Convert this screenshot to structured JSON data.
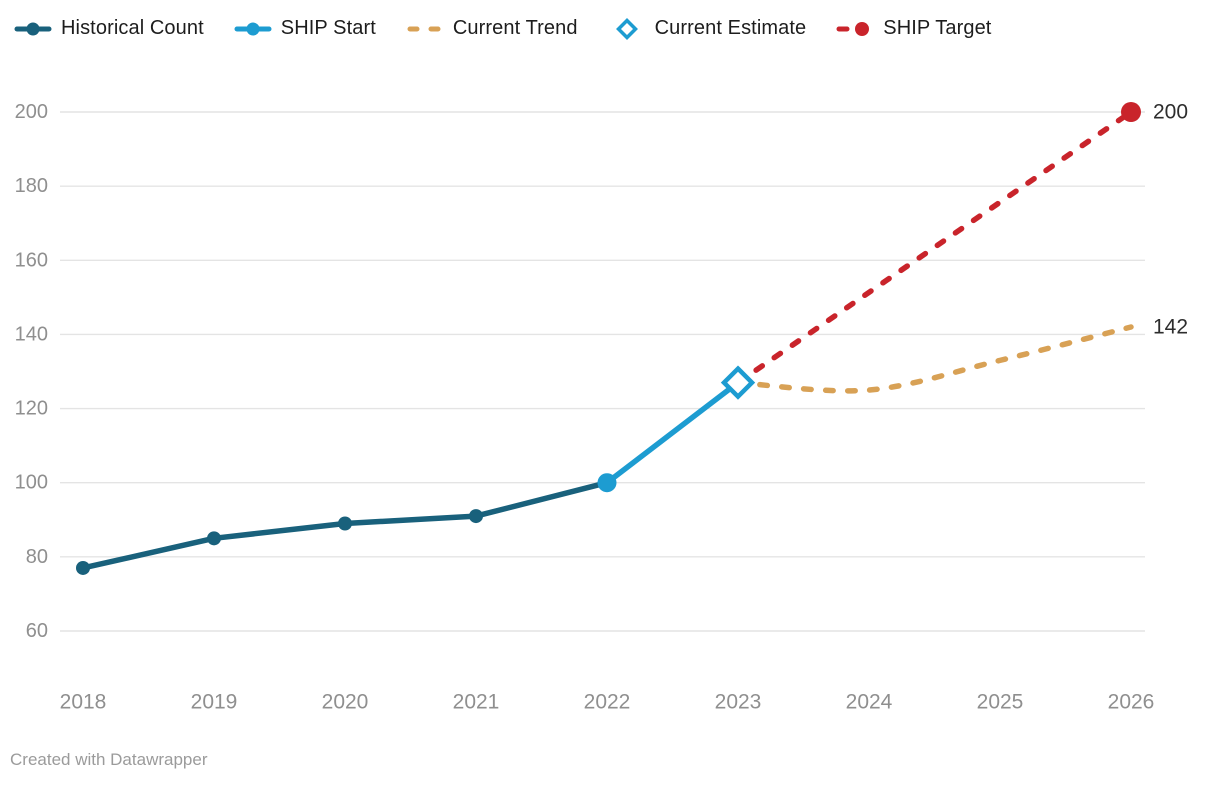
{
  "footer": "Created with Datawrapper",
  "colors": {
    "background": "#ffffff",
    "grid": "#e4e4e4",
    "axis_text": "#8f8f8f",
    "value_label_text": "#2d2d2d",
    "legend_text": "#1d1d1d",
    "footer_text": "#9b9b9b",
    "historical": "#19617c",
    "ship_start": "#1d9cd1",
    "current_trend": "#d8a155",
    "current_estimate": "#1d9cd1",
    "ship_target": "#c9242b"
  },
  "chart_data": {
    "type": "line",
    "title": "",
    "xlabel": "",
    "ylabel": "",
    "grid": "horizontal",
    "legend_position": "top",
    "x_ticks": [
      2018,
      2019,
      2020,
      2021,
      2022,
      2023,
      2024,
      2025,
      2026
    ],
    "x_tick_labels": [
      "2018",
      "2019",
      "2020",
      "2021",
      "2022",
      "2023",
      "2024",
      "2025",
      "2026"
    ],
    "y_ticks": [
      60,
      80,
      100,
      120,
      140,
      160,
      180,
      200
    ],
    "y_tick_labels": [
      "60",
      "80",
      "100",
      "120",
      "140",
      "160",
      "180",
      "200"
    ],
    "xlim": [
      2018,
      2026
    ],
    "ylim": [
      60,
      200
    ],
    "series": [
      {
        "name": "Historical Count",
        "type": "line",
        "style": "solid",
        "marker": "circle",
        "marker_size": 7,
        "color_key": "historical",
        "data": [
          {
            "x": 2018,
            "y": 77
          },
          {
            "x": 2019,
            "y": 85
          },
          {
            "x": 2020,
            "y": 89
          },
          {
            "x": 2021,
            "y": 91
          },
          {
            "x": 2022,
            "y": 100
          }
        ]
      },
      {
        "name": "SHIP Start",
        "type": "line",
        "style": "solid",
        "marker": "circle-start",
        "marker_size": 9.5,
        "color_key": "ship_start",
        "data": [
          {
            "x": 2022,
            "y": 100
          },
          {
            "x": 2023,
            "y": 127
          }
        ]
      },
      {
        "name": "Current Trend",
        "type": "line",
        "style": "dashed",
        "smooth": true,
        "marker": "none",
        "color_key": "current_trend",
        "end_label": "142",
        "data": [
          {
            "x": 2023,
            "y": 127
          },
          {
            "x": 2024,
            "y": 125
          },
          {
            "x": 2025,
            "y": 133
          },
          {
            "x": 2026,
            "y": 142
          }
        ]
      },
      {
        "name": "Current Estimate",
        "type": "scatter",
        "style": "marker-only",
        "marker": "open-diamond",
        "marker_size": 14,
        "color_key": "current_estimate",
        "data": [
          {
            "x": 2023,
            "y": 127
          }
        ]
      },
      {
        "name": "SHIP Target",
        "type": "line",
        "style": "dashed",
        "marker": "circle-end",
        "marker_size": 10,
        "color_key": "ship_target",
        "end_label": "200",
        "data": [
          {
            "x": 2023,
            "y": 127
          },
          {
            "x": 2026,
            "y": 200
          }
        ]
      }
    ]
  }
}
